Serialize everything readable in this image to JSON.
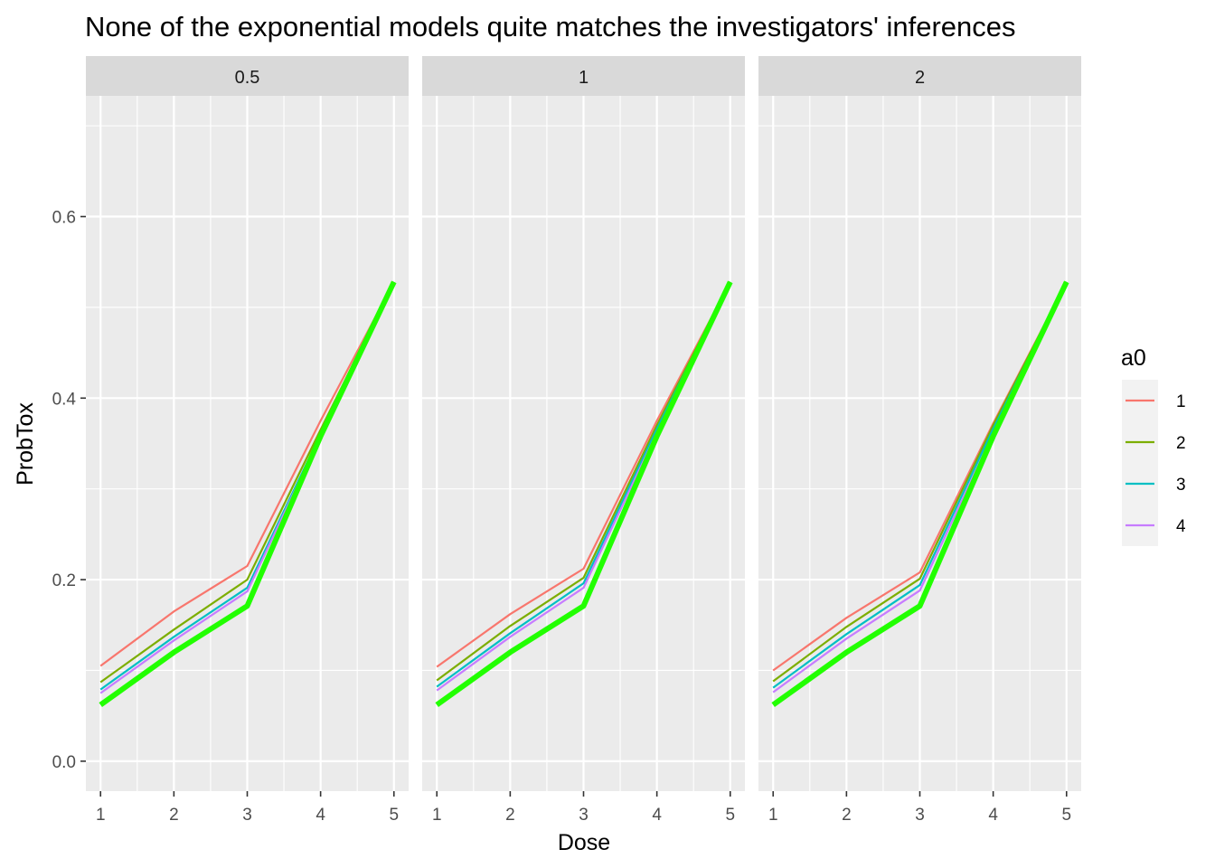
{
  "chart_data": {
    "type": "line",
    "title": "None of the exponential models quite matches the investigators' inferences",
    "xlabel": "Dose",
    "ylabel": "ProbTox",
    "x": [
      1,
      2,
      3,
      4,
      5
    ],
    "x_ticks": [
      "1",
      "2",
      "3",
      "4",
      "5"
    ],
    "y_ticks": [
      {
        "value": 0.0,
        "label": "0.0"
      },
      {
        "value": 0.2,
        "label": "0.2"
      },
      {
        "value": 0.4,
        "label": "0.4"
      },
      {
        "value": 0.6,
        "label": "0.6"
      }
    ],
    "ylim": [
      -0.033,
      0.733
    ],
    "xlim": [
      0.8,
      5.2
    ],
    "grid": true,
    "legend": {
      "title": "a0",
      "position": "right",
      "entries": [
        {
          "label": "1",
          "color": "#F8766D"
        },
        {
          "label": "2",
          "color": "#7CAE00"
        },
        {
          "label": "3",
          "color": "#00BFC4"
        },
        {
          "label": "4",
          "color": "#C77CFF"
        }
      ]
    },
    "reference_color": "#22FF00",
    "facets": [
      {
        "label": "0.5",
        "series": [
          {
            "name": "1",
            "values": [
              0.105,
              0.165,
              0.215,
              0.375,
              0.528
            ]
          },
          {
            "name": "2",
            "values": [
              0.087,
              0.145,
              0.2,
              0.365,
              0.528
            ]
          },
          {
            "name": "3",
            "values": [
              0.079,
              0.137,
              0.191,
              0.36,
              0.528
            ]
          },
          {
            "name": "4",
            "values": [
              0.075,
              0.133,
              0.187,
              0.358,
              0.528
            ]
          }
        ],
        "reference": [
          0.062,
          0.12,
          0.171,
          0.358,
          0.528
        ]
      },
      {
        "label": "1",
        "series": [
          {
            "name": "1",
            "values": [
              0.104,
              0.162,
              0.212,
              0.375,
              0.528
            ]
          },
          {
            "name": "2",
            "values": [
              0.089,
              0.149,
              0.202,
              0.37,
              0.528
            ]
          },
          {
            "name": "3",
            "values": [
              0.082,
              0.141,
              0.196,
              0.366,
              0.528
            ]
          },
          {
            "name": "4",
            "values": [
              0.078,
              0.137,
              0.191,
              0.362,
              0.528
            ]
          }
        ],
        "reference": [
          0.062,
          0.12,
          0.171,
          0.358,
          0.528
        ]
      },
      {
        "label": "2",
        "series": [
          {
            "name": "1",
            "values": [
              0.1,
              0.158,
              0.208,
              0.372,
              0.528
            ]
          },
          {
            "name": "2",
            "values": [
              0.088,
              0.148,
              0.201,
              0.37,
              0.528
            ]
          },
          {
            "name": "3",
            "values": [
              0.081,
              0.14,
              0.194,
              0.366,
              0.528
            ]
          },
          {
            "name": "4",
            "values": [
              0.076,
              0.135,
              0.188,
              0.361,
              0.528
            ]
          }
        ],
        "reference": [
          0.062,
          0.12,
          0.171,
          0.358,
          0.528
        ]
      }
    ]
  }
}
